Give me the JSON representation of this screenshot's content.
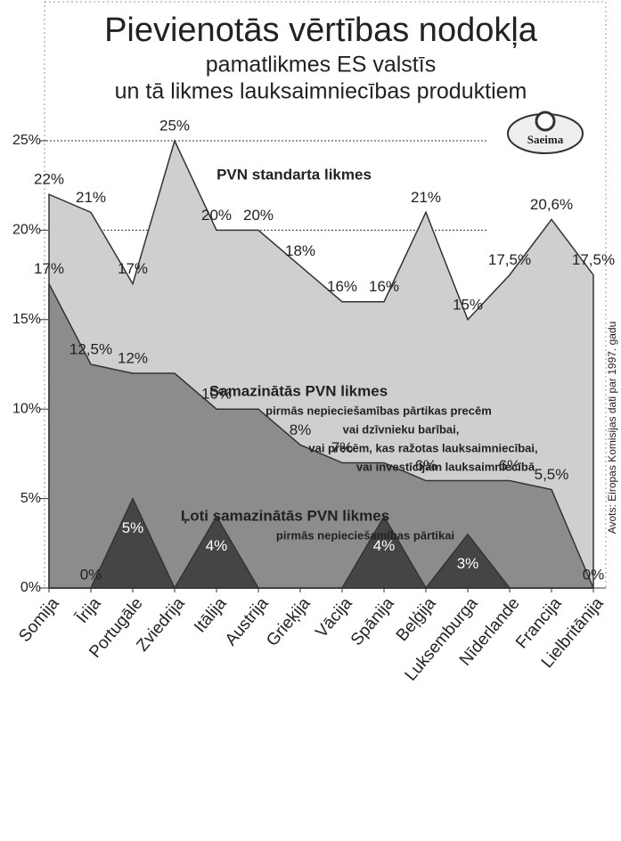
{
  "chart_data": {
    "type": "area",
    "title": "Pievienotās vērtības nodokļa",
    "subtitle": [
      "pamatlikmes ES valstīs",
      "un tā likmes lauksaimniecības produktiem"
    ],
    "logo": "Saeima",
    "source": "Avots: Eiropas Komisijas dati par 1997. gadu",
    "categories": [
      "Somija",
      "Īrija",
      "Portugāle",
      "Zviedrija",
      "Itālija",
      "Austrija",
      "Grieķija",
      "Vācija",
      "Spānija",
      "Beļģija",
      "Luksemburga",
      "Nīderlande",
      "Francija",
      "Lielbritānija"
    ],
    "ylim": [
      0,
      25
    ],
    "yticks": [
      {
        "value": 0,
        "label": "0%"
      },
      {
        "value": 5,
        "label": "5%"
      },
      {
        "value": 10,
        "label": "10%"
      },
      {
        "value": 15,
        "label": "15%"
      },
      {
        "value": 20,
        "label": "20%"
      },
      {
        "value": 25,
        "label": "25%"
      }
    ],
    "grid": true,
    "series": [
      {
        "name": "PVN standarta likmes",
        "color": "#cfcfcf",
        "description": [],
        "values": [
          22,
          21,
          17,
          25,
          20,
          20,
          18,
          16,
          16,
          21,
          15,
          17.5,
          20.6,
          17.5
        ],
        "value_labels": [
          "22%",
          "21%",
          "17%",
          "25%",
          "20%",
          "20%",
          "18%",
          "16%",
          "16%",
          "21%",
          "15%",
          "17,5%",
          "20,6%",
          "17,5%"
        ]
      },
      {
        "name": "Samazinātās PVN likmes",
        "color": "#8c8c8c",
        "description": [
          "pirmās nepieciešamības pārtikas precēm",
          "vai dzīvnieku barībai,",
          "vai precēm, kas ražotas lauksaimniecībai,",
          "vai investīcijām lauksaimniecībā"
        ],
        "values": [
          17,
          12.5,
          12,
          12,
          10,
          10,
          8,
          7,
          7,
          6,
          6,
          6,
          5.5,
          0
        ],
        "value_labels": [
          "17%",
          "12,5%",
          "12%",
          null,
          "10%",
          null,
          "8%",
          "7%",
          null,
          "6%",
          null,
          "6%",
          "5,5%",
          null
        ]
      },
      {
        "name": "Ļoti samazinātās PVN likmes",
        "color": "#454545",
        "description": [
          "pirmās nepieciešamības pārtikai"
        ],
        "values": [
          0,
          0,
          5,
          0,
          4,
          0,
          0,
          0,
          4,
          0,
          3,
          0,
          0,
          0
        ],
        "value_labels": [
          null,
          "0%",
          "5%",
          null,
          "4%",
          null,
          null,
          null,
          "4%",
          null,
          "3%",
          null,
          null,
          "0%"
        ]
      }
    ]
  }
}
